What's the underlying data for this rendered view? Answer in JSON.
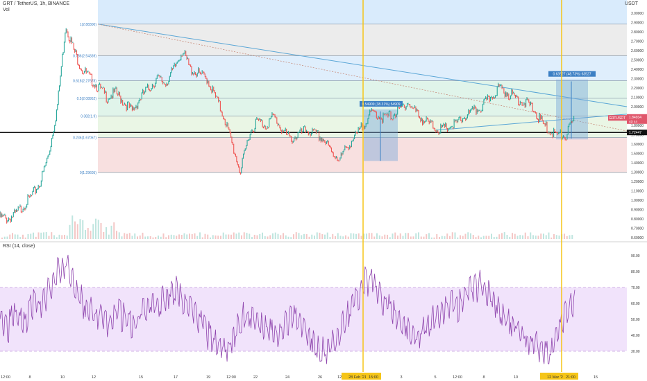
{
  "header": {
    "symbol": "GRT / TetherUS, 1h, BINANCE",
    "vol": "Vol",
    "rsi": "RSI (14, close)",
    "currency": "USDT"
  },
  "price_axis": {
    "ticks": [
      "3.00000",
      "2.90000",
      "2.80000",
      "2.70000",
      "2.60000",
      "2.50000",
      "2.40000",
      "2.30000",
      "2.20000",
      "2.10000",
      "2.00000",
      "1.90000",
      "1.80000",
      "1.70000",
      "1.60000",
      "1.50000",
      "1.40000",
      "1.30000",
      "1.20000",
      "1.10000",
      "1.00000",
      "0.90000",
      "0.80000",
      "0.70000",
      "0.60000"
    ]
  },
  "rsi_axis": {
    "ticks": [
      "90.00",
      "80.00",
      "70.00",
      "60.00",
      "50.00",
      "40.00",
      "30.00"
    ]
  },
  "time_axis": {
    "labels": [
      "12:00",
      "8",
      "10",
      "12",
      "15",
      "17",
      "19",
      "12:00",
      "22",
      "24",
      "26",
      "12:00",
      "28 Feb '21",
      "15:00",
      "3",
      "5",
      "12:00",
      "8",
      "10",
      "12 Mar '21",
      "21:00",
      "15"
    ]
  },
  "fib": {
    "levels": [
      {
        "label": "1(2.88300)",
        "price": 2.883
      },
      {
        "label": "0.786(2.54339)",
        "price": 2.54339
      },
      {
        "label": "0.618(2.27678)",
        "price": 2.27678
      },
      {
        "label": "0.5(2.08952)",
        "price": 2.08952
      },
      {
        "label": "0.382(1.9)",
        "price": 1.9
      },
      {
        "label": "0.236(1.67057)",
        "price": 1.67057
      },
      {
        "label": "0(1.29605)",
        "price": 1.29605
      }
    ]
  },
  "annotations": {
    "range1": "0.54909 (38.31%) 54909",
    "range2": "0.63527 (48.73%) 63527",
    "last_price": "1.84934",
    "last_sub": "4D 44",
    "symbol_tag": "GRTUSDT",
    "hline": "1.72447"
  },
  "chart_data": {
    "type": "line",
    "series": [
      {
        "values": [
          0.82,
          0.8,
          0.85,
          0.95,
          1.05,
          1.2,
          1.5,
          2.0,
          2.88,
          2.6,
          2.4,
          2.3,
          2.2,
          2.1,
          2.15,
          2.05,
          1.95,
          2.1,
          2.2,
          2.3,
          2.25,
          2.4,
          2.6,
          2.4,
          2.35,
          2.3,
          2.1,
          1.9,
          1.6,
          1.3,
          1.7,
          1.85,
          1.8,
          1.9,
          1.75,
          1.65,
          1.7,
          1.75,
          1.7,
          1.65,
          1.5,
          1.45,
          1.6,
          1.7,
          1.85,
          1.95,
          1.88,
          1.9,
          1.95,
          2.05,
          1.95,
          1.85,
          1.8,
          1.75,
          1.78,
          1.82,
          1.9,
          1.95,
          2.0,
          2.1,
          2.2,
          2.15,
          2.1,
          2.05,
          2.0,
          1.85,
          1.75,
          1.7,
          1.68,
          1.85
        ]
      },
      {
        "values": [
          50,
          45,
          55,
          48,
          60,
          58,
          70,
          80,
          85,
          70,
          60,
          55,
          50,
          45,
          55,
          50,
          45,
          55,
          60,
          58,
          65,
          70,
          60,
          55,
          50,
          40,
          35,
          30,
          40,
          50,
          55,
          50,
          45,
          40,
          45,
          50,
          48,
          40,
          35,
          30,
          35,
          45,
          55,
          65,
          75,
          70,
          60,
          55,
          50,
          45,
          40,
          45,
          50,
          55,
          60,
          58,
          65,
          70,
          72,
          65,
          55,
          50,
          45,
          40,
          35,
          30,
          25,
          40,
          55,
          60
        ]
      }
    ]
  }
}
